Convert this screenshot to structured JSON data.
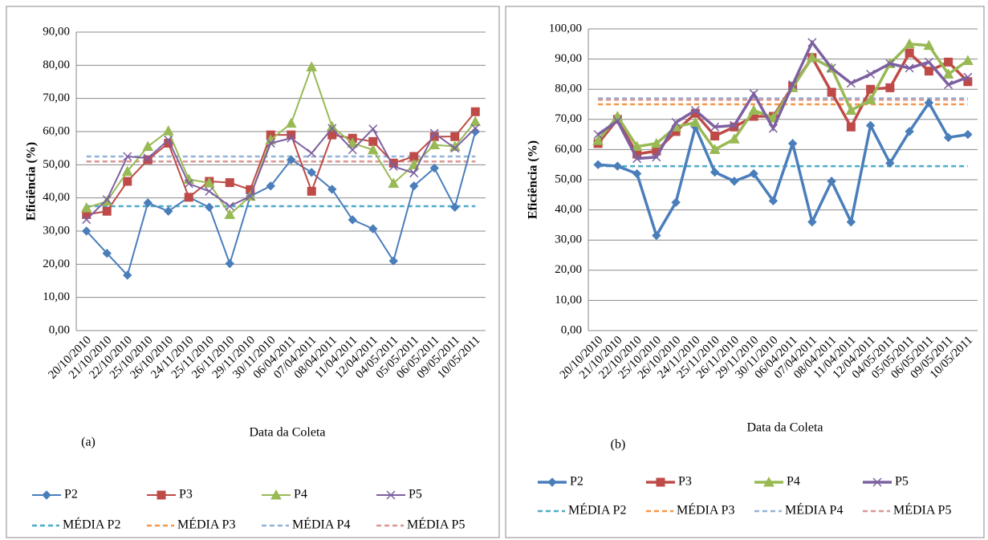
{
  "chart_data": [
    {
      "type": "line",
      "panel_label": "(a)",
      "ylabel": "Eficiência (%)",
      "xlabel": "Data da Coleta",
      "categories": [
        "20/10/2010",
        "21/10/2010",
        "22/10/2010",
        "25/10/2010",
        "26/10/2010",
        "24/11/2010",
        "25/11/2010",
        "26/11/2010",
        "29/11/2010",
        "30/11/2010",
        "06/04/2011",
        "07/04/2011",
        "08/04/2011",
        "11/04/2011",
        "12/04/2011",
        "04/05/2011",
        "05/05/2011",
        "06/05/2011",
        "09/05/2011",
        "10/05/2011"
      ],
      "ylim": [
        0,
        90
      ],
      "grid": true,
      "yticks": [
        {
          "value": 0,
          "label": "0,00"
        },
        {
          "value": 10,
          "label": "10,00"
        },
        {
          "value": 20,
          "label": "20,00"
        },
        {
          "value": 30,
          "label": "30,00"
        },
        {
          "value": 40,
          "label": "40,00"
        },
        {
          "value": 50,
          "label": "50,00"
        },
        {
          "value": 60,
          "label": "60,00"
        },
        {
          "value": 70,
          "label": "70,00"
        },
        {
          "value": 80,
          "label": "80,00"
        },
        {
          "value": 90,
          "label": "90,00"
        }
      ],
      "series": [
        {
          "name": "P2",
          "color": "#4a7ebb",
          "marker": "diamond",
          "values": [
            30,
            23.3,
            16.7,
            38.5,
            36,
            40.2,
            37.2,
            20.2,
            40.5,
            43.6,
            51.5,
            47.7,
            42.6,
            33.4,
            30.7,
            21,
            43.6,
            49,
            37.2,
            60
          ]
        },
        {
          "name": "P3",
          "color": "#be4b48",
          "marker": "square",
          "values": [
            35,
            36,
            45,
            51.5,
            56.5,
            40.2,
            45,
            44.6,
            42.5,
            59,
            59,
            42,
            59,
            58,
            57,
            50.5,
            52.5,
            58.5,
            58.5,
            66
          ]
        },
        {
          "name": "P4",
          "color": "#98b954",
          "marker": "triangle",
          "values": [
            37,
            39,
            48,
            55.5,
            60.2,
            45.6,
            44.5,
            35,
            40.5,
            57.5,
            62.5,
            79.5,
            61.5,
            56.5,
            54.5,
            44.4,
            50,
            56,
            55.5,
            63
          ]
        },
        {
          "name": "P5",
          "color": "#7d60a0",
          "marker": "x",
          "values": [
            33.5,
            39.5,
            52.5,
            52,
            57.5,
            44.3,
            42,
            37.5,
            40.5,
            56.5,
            58,
            53.5,
            61,
            54.5,
            60.8,
            49.5,
            47.5,
            59.5,
            55,
            61
          ]
        }
      ],
      "means": [
        {
          "name": "MÉDIA P2",
          "color": "#4bacc6",
          "value": 37.5
        },
        {
          "name": "MÉDIA P3",
          "color": "#f79646",
          "value": 51
        },
        {
          "name": "MÉDIA P4",
          "color": "#95b3d7",
          "value": 52.5
        },
        {
          "name": "MÉDIA P5",
          "color": "#d99694",
          "value": 51
        }
      ]
    },
    {
      "type": "line",
      "panel_label": "(b)",
      "ylabel": "Eficiência (%)",
      "xlabel": "Data da Coleta",
      "categories": [
        "20/10/2010",
        "21/10/2010",
        "22/10/2010",
        "25/10/2010",
        "26/10/2010",
        "24/11/2010",
        "25/11/2010",
        "26/11/2010",
        "29/11/2010",
        "30/11/2010",
        "06/04/2011",
        "07/04/2011",
        "08/04/2011",
        "11/04/2011",
        "12/04/2011",
        "04/05/2011",
        "05/05/2011",
        "06/05/2011",
        "09/05/2011",
        "10/05/2011"
      ],
      "ylim": [
        0,
        100
      ],
      "grid": true,
      "yticks": [
        {
          "value": 0,
          "label": "0,00"
        },
        {
          "value": 10,
          "label": "10,00"
        },
        {
          "value": 20,
          "label": "20,00"
        },
        {
          "value": 30,
          "label": "30,00"
        },
        {
          "value": 40,
          "label": "40,00"
        },
        {
          "value": 50,
          "label": "50,00"
        },
        {
          "value": 60,
          "label": "60,00"
        },
        {
          "value": 70,
          "label": "70,00"
        },
        {
          "value": 80,
          "label": "80,00"
        },
        {
          "value": 90,
          "label": "90,00"
        },
        {
          "value": 100,
          "label": "100,00"
        }
      ],
      "series": [
        {
          "name": "P2",
          "color": "#4a7ebb",
          "marker": "diamond",
          "values": [
            55,
            54.5,
            52,
            31.5,
            42.5,
            67.5,
            52.5,
            49.5,
            52,
            43,
            62,
            36,
            49.5,
            36,
            68,
            55.5,
            66,
            75.5,
            64,
            65
          ]
        },
        {
          "name": "P3",
          "color": "#be4b48",
          "marker": "square",
          "values": [
            62,
            70,
            58.5,
            59.5,
            66,
            72,
            64.5,
            67.5,
            71,
            71,
            81,
            90.5,
            79,
            67.5,
            80,
            80.5,
            92,
            86,
            89,
            82.5
          ]
        },
        {
          "name": "P4",
          "color": "#98b954",
          "marker": "triangle",
          "values": [
            63,
            71,
            61,
            62,
            67.5,
            69,
            60,
            63.5,
            73,
            70.5,
            80.5,
            90.5,
            87,
            73,
            76.5,
            88.5,
            95,
            94.5,
            85,
            89.5
          ]
        },
        {
          "name": "P5",
          "color": "#7d60a0",
          "marker": "x",
          "values": [
            65,
            69.5,
            57,
            57.5,
            69,
            73,
            67.5,
            68,
            78.5,
            67,
            81.5,
            95.5,
            87,
            82,
            85,
            88.5,
            87,
            89,
            81.5,
            84
          ]
        }
      ],
      "means": [
        {
          "name": "MÉDIA P2",
          "color": "#4bacc6",
          "value": 54.5
        },
        {
          "name": "MÉDIA P3",
          "color": "#f79646",
          "value": 75
        },
        {
          "name": "MÉDIA P4",
          "color": "#95b3d7",
          "value": 77
        },
        {
          "name": "MÉDIA P5",
          "color": "#d99694",
          "value": 76.5
        }
      ]
    }
  ]
}
